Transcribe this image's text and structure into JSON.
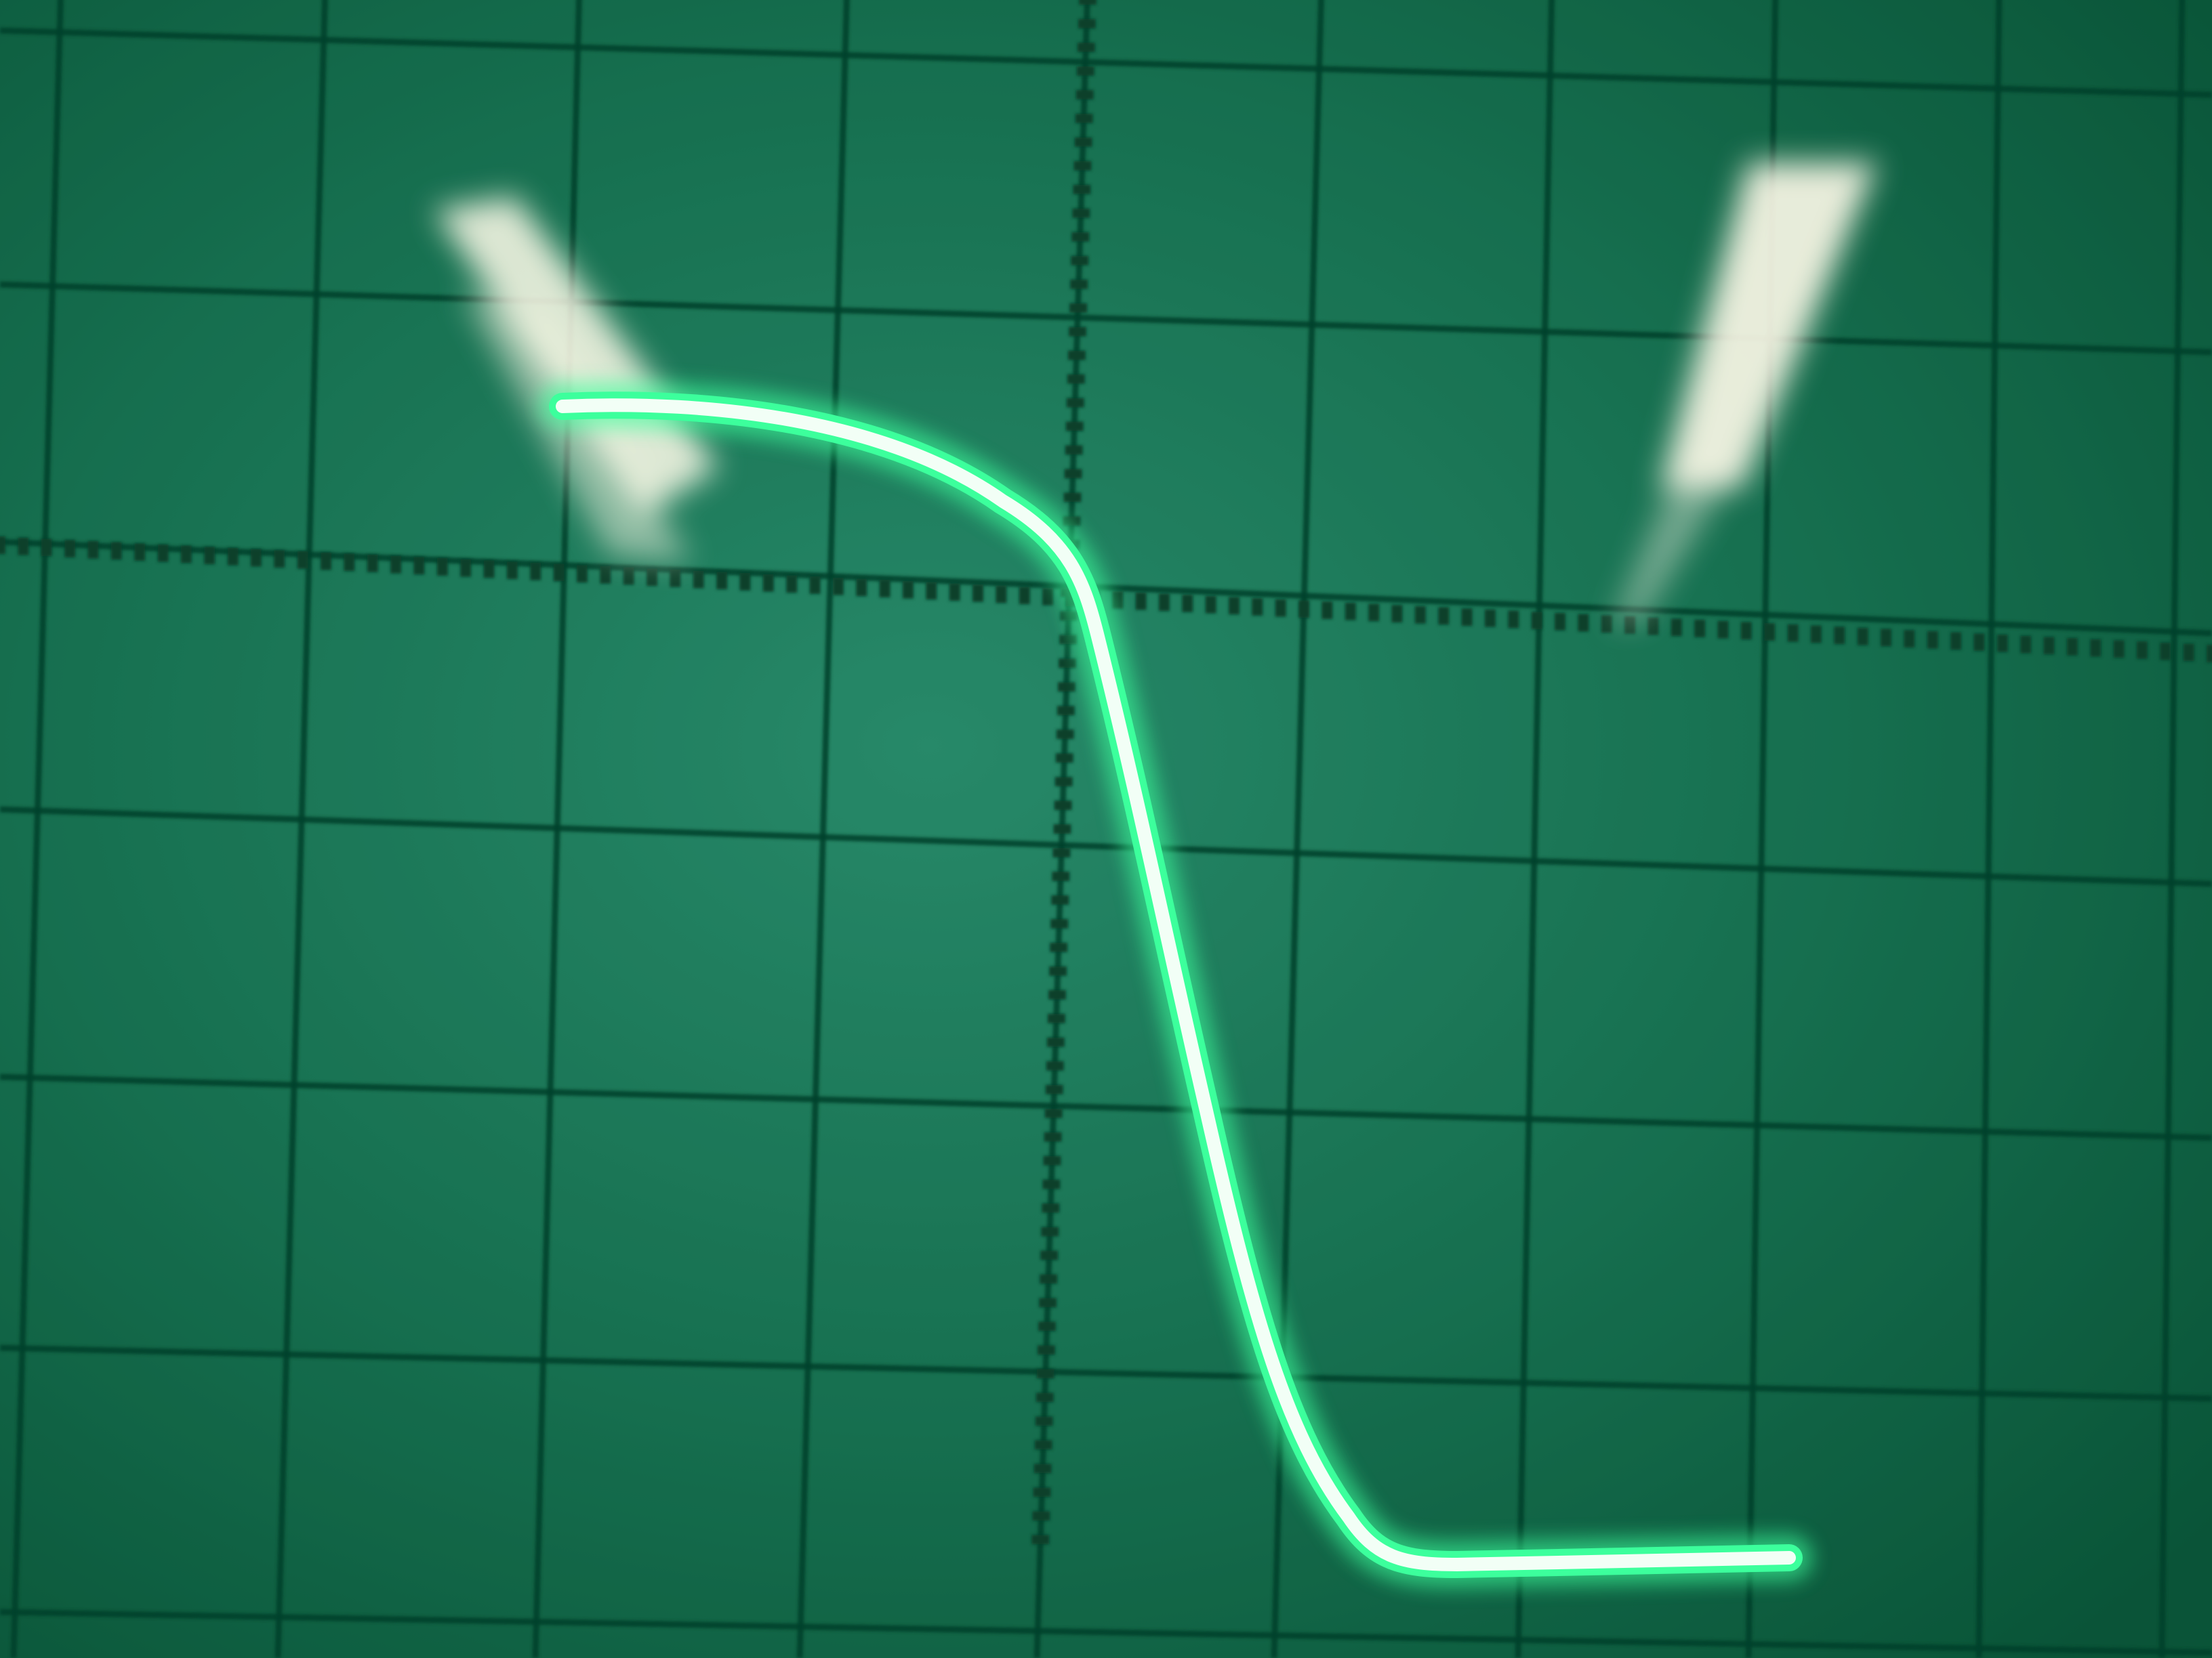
{
  "scene": {
    "subject": "oscilloscope-screen",
    "colors": {
      "screen_center": "#2f9a78",
      "screen_mid": "#1a7a58",
      "screen_edge": "#0b5a3c",
      "graticule": "#07402b",
      "trace_core": "#f2fff6",
      "trace_glow": "#3cff9c",
      "reflection": "#fffbea"
    },
    "graticule": {
      "major_vertical_lines": 10,
      "major_horizontal_lines": 8,
      "center_axes_have_minor_ticks": true
    },
    "trace": {
      "shape": "falling-edge",
      "high_level_divisions": 0.75,
      "low_level_divisions": -3.45
    },
    "reflections": 2
  }
}
